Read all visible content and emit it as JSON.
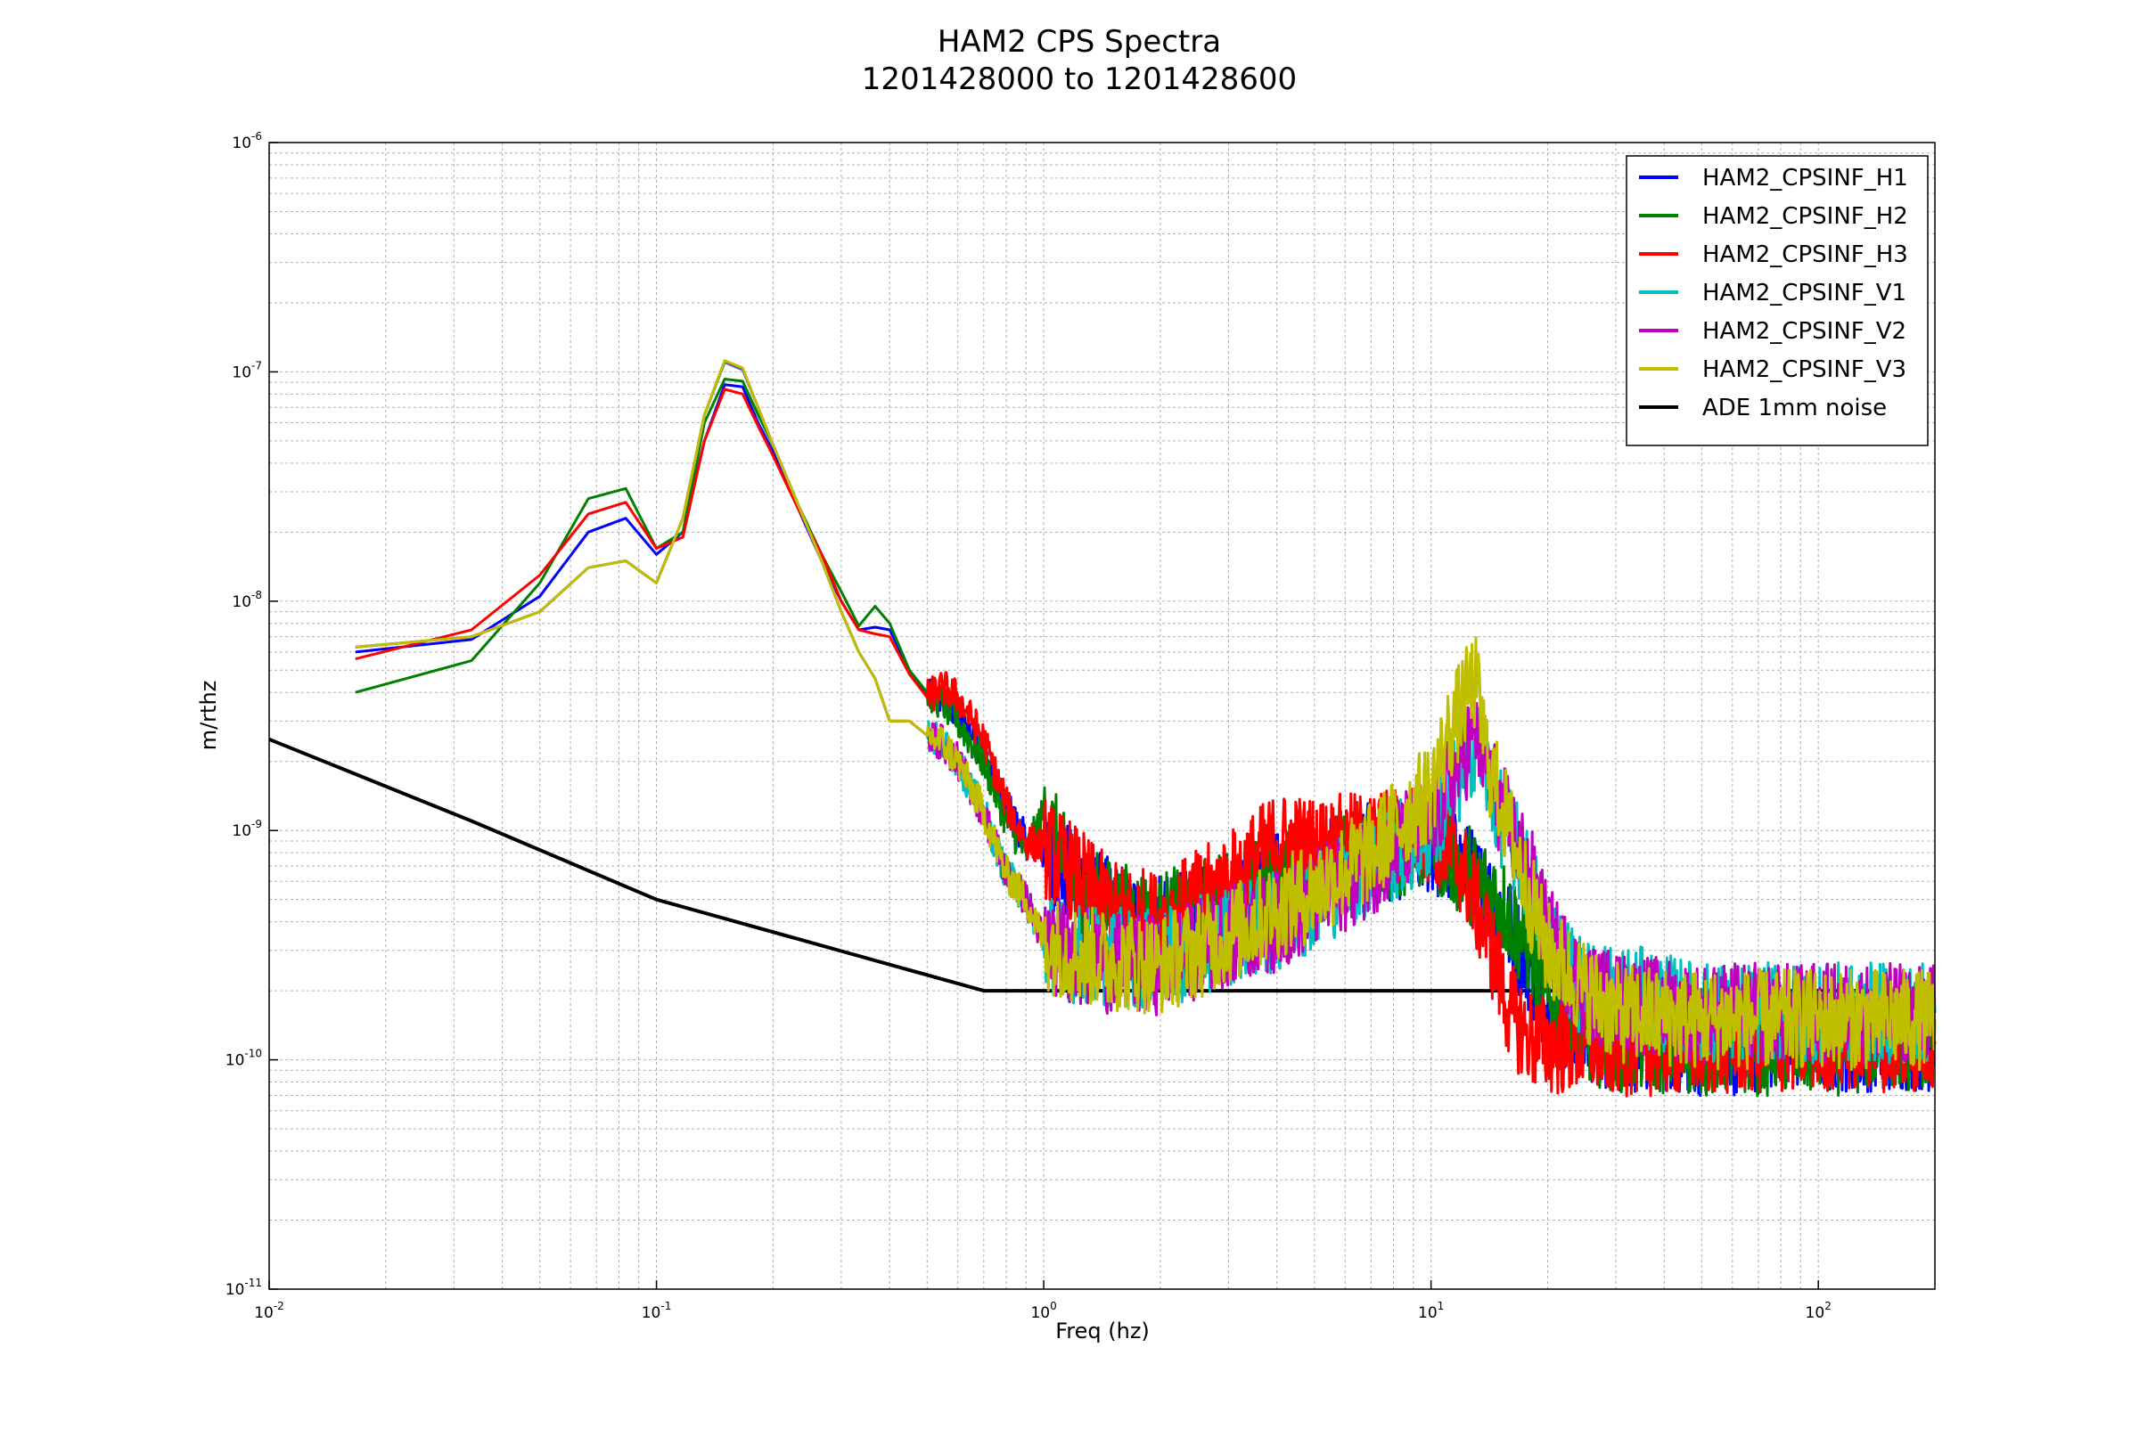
{
  "chart_data": {
    "type": "line",
    "title": "HAM2 CPS Spectra",
    "subtitle": "1201428000 to 1201428600",
    "xlabel": "Freq (hz)",
    "ylabel": "m/rthz",
    "xscale": "log",
    "yscale": "log",
    "xlim": [
      0.01,
      200
    ],
    "ylim": [
      1e-11,
      1e-06
    ],
    "grid": true,
    "legend_position": "top-right",
    "x_ticks": [
      {
        "value": 0.01,
        "base": "10",
        "exp": "-2"
      },
      {
        "value": 0.1,
        "base": "10",
        "exp": "-1"
      },
      {
        "value": 1,
        "base": "10",
        "exp": "0"
      },
      {
        "value": 10,
        "base": "10",
        "exp": "1"
      },
      {
        "value": 100,
        "base": "10",
        "exp": "2"
      }
    ],
    "y_ticks": [
      {
        "value": 1e-11,
        "base": "10",
        "exp": "-11"
      },
      {
        "value": 1e-10,
        "base": "10",
        "exp": "-10"
      },
      {
        "value": 1e-09,
        "base": "10",
        "exp": "-9"
      },
      {
        "value": 1e-08,
        "base": "10",
        "exp": "-8"
      },
      {
        "value": 1e-07,
        "base": "10",
        "exp": "-7"
      },
      {
        "value": 1e-06,
        "base": "10",
        "exp": "-6"
      }
    ],
    "series": [
      {
        "name": "HAM2_CPSINF_H1",
        "color": "#0000ff",
        "points": [
          [
            0.0167,
            6e-09
          ],
          [
            0.0333,
            6.8e-09
          ],
          [
            0.05,
            1.05e-08
          ],
          [
            0.0667,
            2e-08
          ],
          [
            0.0833,
            2.3e-08
          ],
          [
            0.1,
            1.6e-08
          ],
          [
            0.117,
            2e-08
          ],
          [
            0.133,
            5e-08
          ],
          [
            0.15,
            8.8e-08
          ],
          [
            0.167,
            8.6e-08
          ],
          [
            0.183,
            6e-08
          ],
          [
            0.2,
            4.5e-08
          ],
          [
            0.233,
            2.5e-08
          ],
          [
            0.267,
            1.5e-08
          ],
          [
            0.3,
            1e-08
          ],
          [
            0.333,
            7.5e-09
          ],
          [
            0.367,
            7.7e-09
          ],
          [
            0.4,
            7.5e-09
          ],
          [
            0.45,
            5e-09
          ],
          [
            0.5,
            3.8e-09
          ],
          [
            0.55,
            3.7e-09
          ],
          [
            0.6,
            3.2e-09
          ],
          [
            0.7,
            2.2e-09
          ],
          [
            0.8,
            1.3e-09
          ],
          [
            0.9,
            9e-10
          ],
          [
            1.0,
            8e-10
          ],
          [
            1.2,
            6e-10
          ],
          [
            1.5,
            4.5e-10
          ],
          [
            2.0,
            3.8e-10
          ],
          [
            3.0,
            4.5e-10
          ],
          [
            4.0,
            6e-10
          ],
          [
            5.0,
            6.5e-10
          ],
          [
            7.0,
            8e-10
          ],
          [
            10.0,
            8.5e-10
          ],
          [
            12.0,
            7e-10
          ],
          [
            15.0,
            4.5e-10
          ],
          [
            18.0,
            2.6e-10
          ],
          [
            20.0,
            1.7e-10
          ],
          [
            25.0,
            1.3e-10
          ],
          [
            30.0,
            1.2e-10
          ],
          [
            50.0,
            1.15e-10
          ],
          [
            100.0,
            1.2e-10
          ],
          [
            200.0,
            1.2e-10
          ]
        ]
      },
      {
        "name": "HAM2_CPSINF_H2",
        "color": "#008000",
        "points": [
          [
            0.0167,
            4e-09
          ],
          [
            0.0333,
            5.5e-09
          ],
          [
            0.05,
            1.2e-08
          ],
          [
            0.0667,
            2.8e-08
          ],
          [
            0.0833,
            3.1e-08
          ],
          [
            0.1,
            1.7e-08
          ],
          [
            0.117,
            2e-08
          ],
          [
            0.133,
            6e-08
          ],
          [
            0.15,
            9.3e-08
          ],
          [
            0.167,
            9.1e-08
          ],
          [
            0.183,
            6.5e-08
          ],
          [
            0.2,
            4.8e-08
          ],
          [
            0.233,
            2.6e-08
          ],
          [
            0.267,
            1.6e-08
          ],
          [
            0.3,
            1.1e-08
          ],
          [
            0.333,
            7.8e-09
          ],
          [
            0.367,
            9.5e-09
          ],
          [
            0.4,
            8e-09
          ],
          [
            0.45,
            5e-09
          ],
          [
            0.5,
            4e-09
          ],
          [
            0.55,
            3.6e-09
          ],
          [
            0.6,
            3e-09
          ],
          [
            0.7,
            2e-09
          ],
          [
            0.8,
            1.1e-09
          ],
          [
            0.9,
            8e-10
          ],
          [
            1.0,
            1.2e-09
          ],
          [
            1.2,
            5.5e-10
          ],
          [
            1.5,
            4.5e-10
          ],
          [
            2.0,
            4e-10
          ],
          [
            3.0,
            5e-10
          ],
          [
            4.0,
            6e-10
          ],
          [
            5.0,
            7e-10
          ],
          [
            7.0,
            8e-10
          ],
          [
            10.0,
            9e-10
          ],
          [
            12.0,
            7e-10
          ],
          [
            15.0,
            5e-10
          ],
          [
            18.0,
            3e-10
          ],
          [
            20.0,
            1.8e-10
          ],
          [
            25.0,
            1.3e-10
          ],
          [
            30.0,
            1.2e-10
          ],
          [
            50.0,
            1.15e-10
          ],
          [
            100.0,
            1.15e-10
          ],
          [
            200.0,
            1.2e-10
          ]
        ]
      },
      {
        "name": "HAM2_CPSINF_H3",
        "color": "#ff0000",
        "points": [
          [
            0.0167,
            5.6e-09
          ],
          [
            0.0333,
            7.5e-09
          ],
          [
            0.05,
            1.3e-08
          ],
          [
            0.0667,
            2.4e-08
          ],
          [
            0.0833,
            2.7e-08
          ],
          [
            0.1,
            1.7e-08
          ],
          [
            0.117,
            1.9e-08
          ],
          [
            0.133,
            5e-08
          ],
          [
            0.15,
            8.4e-08
          ],
          [
            0.167,
            8e-08
          ],
          [
            0.183,
            5.8e-08
          ],
          [
            0.2,
            4.3e-08
          ],
          [
            0.233,
            2.5e-08
          ],
          [
            0.267,
            1.6e-08
          ],
          [
            0.3,
            1e-08
          ],
          [
            0.333,
            7.5e-09
          ],
          [
            0.367,
            7.2e-09
          ],
          [
            0.4,
            7e-09
          ],
          [
            0.45,
            4.8e-09
          ],
          [
            0.5,
            3.8e-09
          ],
          [
            0.55,
            4.2e-09
          ],
          [
            0.6,
            3.8e-09
          ],
          [
            0.7,
            2.5e-09
          ],
          [
            0.8,
            1.3e-09
          ],
          [
            0.9,
            9e-10
          ],
          [
            1.0,
            8.5e-10
          ],
          [
            1.2,
            6.5e-10
          ],
          [
            1.5,
            4.5e-10
          ],
          [
            2.0,
            4e-10
          ],
          [
            3.0,
            6e-10
          ],
          [
            4.0,
            9e-10
          ],
          [
            5.0,
            8.5e-10
          ],
          [
            7.0,
            9e-10
          ],
          [
            10.0,
            1e-09
          ],
          [
            12.0,
            7e-10
          ],
          [
            14.0,
            3.5e-10
          ],
          [
            16.0,
            1.6e-10
          ],
          [
            18.0,
            1.25e-10
          ],
          [
            20.0,
            1.15e-10
          ],
          [
            25.0,
            1.15e-10
          ],
          [
            30.0,
            1.15e-10
          ],
          [
            50.0,
            1.15e-10
          ],
          [
            100.0,
            1.2e-10
          ],
          [
            200.0,
            1.2e-10
          ]
        ]
      },
      {
        "name": "HAM2_CPSINF_V1",
        "color": "#00bfbf",
        "points": [
          [
            0.0167,
            6.3e-09
          ],
          [
            0.0333,
            7e-09
          ],
          [
            0.05,
            9e-09
          ],
          [
            0.0667,
            1.4e-08
          ],
          [
            0.0833,
            1.5e-08
          ],
          [
            0.1,
            1.2e-08
          ],
          [
            0.117,
            2.3e-08
          ],
          [
            0.133,
            6.5e-08
          ],
          [
            0.15,
            1.1e-07
          ],
          [
            0.167,
            1.02e-07
          ],
          [
            0.183,
            7e-08
          ],
          [
            0.2,
            4.8e-08
          ],
          [
            0.233,
            2.6e-08
          ],
          [
            0.267,
            1.5e-08
          ],
          [
            0.3,
            9e-09
          ],
          [
            0.333,
            6e-09
          ],
          [
            0.367,
            4.6e-09
          ],
          [
            0.4,
            3e-09
          ],
          [
            0.45,
            3e-09
          ],
          [
            0.5,
            2.6e-09
          ],
          [
            0.55,
            2.4e-09
          ],
          [
            0.6,
            2e-09
          ],
          [
            0.7,
            1.2e-09
          ],
          [
            0.8,
            6.5e-10
          ],
          [
            0.9,
            5e-10
          ],
          [
            1.0,
            3.3e-10
          ],
          [
            1.2,
            2.9e-10
          ],
          [
            1.5,
            2.8e-10
          ],
          [
            2.0,
            2.7e-10
          ],
          [
            3.0,
            3.5e-10
          ],
          [
            4.0,
            4e-10
          ],
          [
            5.0,
            5e-10
          ],
          [
            7.0,
            7e-10
          ],
          [
            10.0,
            1e-09
          ],
          [
            12.0,
            1.8e-09
          ],
          [
            13.0,
            2.5e-09
          ],
          [
            15.0,
            1.2e-09
          ],
          [
            18.0,
            6e-10
          ],
          [
            20.0,
            3.5e-10
          ],
          [
            25.0,
            2e-10
          ],
          [
            30.0,
            2e-10
          ],
          [
            50.0,
            1.6e-10
          ],
          [
            100.0,
            1.6e-10
          ],
          [
            200.0,
            1.6e-10
          ]
        ]
      },
      {
        "name": "HAM2_CPSINF_V2",
        "color": "#bf00bf",
        "points": [
          [
            0.0167,
            6.3e-09
          ],
          [
            0.0333,
            7e-09
          ],
          [
            0.05,
            9e-09
          ],
          [
            0.0667,
            1.4e-08
          ],
          [
            0.0833,
            1.5e-08
          ],
          [
            0.1,
            1.2e-08
          ],
          [
            0.117,
            2.3e-08
          ],
          [
            0.133,
            6.5e-08
          ],
          [
            0.15,
            1.11e-07
          ],
          [
            0.167,
            1.03e-07
          ],
          [
            0.183,
            7e-08
          ],
          [
            0.2,
            4.8e-08
          ],
          [
            0.233,
            2.6e-08
          ],
          [
            0.267,
            1.5e-08
          ],
          [
            0.3,
            9e-09
          ],
          [
            0.333,
            6e-09
          ],
          [
            0.367,
            4.6e-09
          ],
          [
            0.4,
            3e-09
          ],
          [
            0.45,
            3e-09
          ],
          [
            0.5,
            2.6e-09
          ],
          [
            0.55,
            2.4e-09
          ],
          [
            0.6,
            2e-09
          ],
          [
            0.7,
            1.2e-09
          ],
          [
            0.8,
            6.5e-10
          ],
          [
            0.9,
            5e-10
          ],
          [
            1.0,
            3.3e-10
          ],
          [
            1.2,
            2.9e-10
          ],
          [
            1.5,
            2.6e-10
          ],
          [
            2.0,
            2.6e-10
          ],
          [
            3.0,
            3.5e-10
          ],
          [
            4.0,
            4e-10
          ],
          [
            5.0,
            5e-10
          ],
          [
            7.0,
            7e-10
          ],
          [
            10.0,
            1.1e-09
          ],
          [
            12.0,
            2e-09
          ],
          [
            13.0,
            2.8e-09
          ],
          [
            15.0,
            1.3e-09
          ],
          [
            18.0,
            6.5e-10
          ],
          [
            20.0,
            3.5e-10
          ],
          [
            25.0,
            2e-10
          ],
          [
            30.0,
            1.8e-10
          ],
          [
            50.0,
            1.6e-10
          ],
          [
            100.0,
            1.6e-10
          ],
          [
            200.0,
            1.6e-10
          ]
        ]
      },
      {
        "name": "HAM2_CPSINF_V3",
        "color": "#bfbf00",
        "points": [
          [
            0.0167,
            6.3e-09
          ],
          [
            0.0333,
            7e-09
          ],
          [
            0.05,
            9e-09
          ],
          [
            0.0667,
            1.4e-08
          ],
          [
            0.0833,
            1.5e-08
          ],
          [
            0.1,
            1.2e-08
          ],
          [
            0.117,
            2.3e-08
          ],
          [
            0.133,
            6.5e-08
          ],
          [
            0.15,
            1.12e-07
          ],
          [
            0.167,
            1.04e-07
          ],
          [
            0.183,
            7e-08
          ],
          [
            0.2,
            4.8e-08
          ],
          [
            0.233,
            2.6e-08
          ],
          [
            0.267,
            1.5e-08
          ],
          [
            0.3,
            9e-09
          ],
          [
            0.333,
            6e-09
          ],
          [
            0.367,
            4.6e-09
          ],
          [
            0.4,
            3e-09
          ],
          [
            0.45,
            3e-09
          ],
          [
            0.5,
            2.6e-09
          ],
          [
            0.55,
            2.4e-09
          ],
          [
            0.6,
            2e-09
          ],
          [
            0.7,
            1.2e-09
          ],
          [
            0.8,
            6.5e-10
          ],
          [
            0.9,
            5e-10
          ],
          [
            1.0,
            3.3e-10
          ],
          [
            1.2,
            2.9e-10
          ],
          [
            1.5,
            2.7e-10
          ],
          [
            2.0,
            2.6e-10
          ],
          [
            3.0,
            3.5e-10
          ],
          [
            4.0,
            4.5e-10
          ],
          [
            5.0,
            5.5e-10
          ],
          [
            7.0,
            8e-10
          ],
          [
            10.0,
            1.5e-09
          ],
          [
            11.0,
            2.5e-09
          ],
          [
            12.0,
            3.5e-09
          ],
          [
            13.0,
            4.5e-09
          ],
          [
            14.0,
            2e-09
          ],
          [
            16.0,
            1e-09
          ],
          [
            18.0,
            5e-10
          ],
          [
            20.0,
            3e-10
          ],
          [
            25.0,
            2e-10
          ],
          [
            30.0,
            1.6e-10
          ],
          [
            50.0,
            1.5e-10
          ],
          [
            100.0,
            1.5e-10
          ],
          [
            200.0,
            1.5e-10
          ]
        ]
      },
      {
        "name": "ADE 1mm noise",
        "color": "#000000",
        "points": [
          [
            0.01,
            2.5e-09
          ],
          [
            0.0333,
            1.1e-09
          ],
          [
            0.1,
            5e-10
          ],
          [
            0.7,
            2e-10
          ],
          [
            200.0,
            2e-10
          ]
        ]
      }
    ]
  }
}
